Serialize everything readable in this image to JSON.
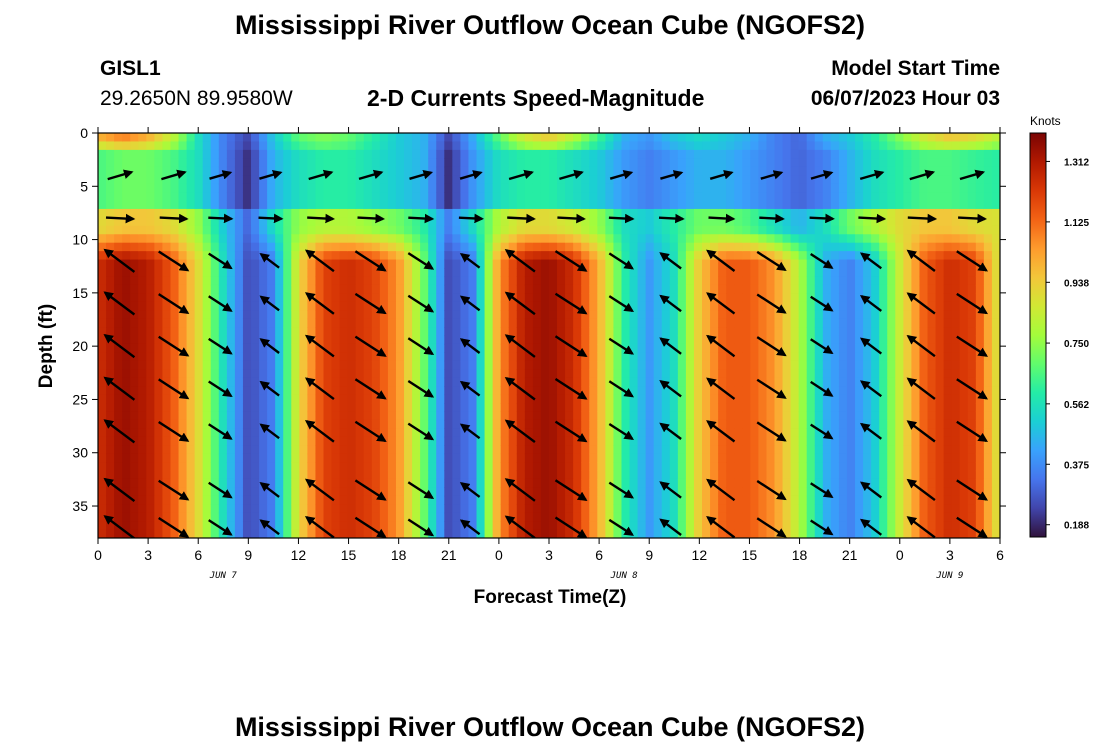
{
  "header": {
    "title": "Mississippi River Outflow Ocean Cube (NGOFS2)",
    "station": "GISL1",
    "location": "29.2650N  89.9580W",
    "subtitle": "2-D Currents Speed-Magnitude",
    "model_start_label": "Model Start Time",
    "model_start_value": "06/07/2023 Hour 03"
  },
  "footer": {
    "title": "Mississippi River Outflow Ocean Cube (NGOFS2)"
  },
  "chart_data": {
    "type": "heatmap",
    "ylabel": "Depth (ft)",
    "xlabel": "Forecast Time(Z)",
    "x_tick_labels": [
      "0",
      "3",
      "6",
      "9",
      "12",
      "15",
      "18",
      "21",
      "0",
      "3",
      "6",
      "9",
      "12",
      "15",
      "18",
      "21",
      "0",
      "3",
      "6"
    ],
    "date_labels": [
      "JUN 7",
      "JUN 8",
      "JUN 9"
    ],
    "ylim": [
      0,
      38
    ],
    "y_ticks": [
      "0",
      "5",
      "10",
      "15",
      "20",
      "25",
      "30",
      "35"
    ],
    "colorbar": {
      "unit": "Knots",
      "ticks": [
        "1.312",
        "1.125",
        "0.938",
        "0.750",
        "0.562",
        "0.375",
        "0.188"
      ],
      "colors": [
        "#30123b",
        "#4145ab",
        "#4675ed",
        "#39a2fc",
        "#1bcfd4",
        "#24eca6",
        "#61fc6c",
        "#a4fc3b",
        "#d1e834",
        "#f3c63a",
        "#fe9b2d",
        "#f36315",
        "#d93806",
        "#b11901",
        "#7a0403"
      ]
    },
    "x_hours": [
      0,
      54
    ],
    "depth_bands": [
      {
        "from": 0,
        "to": 1.5,
        "layer": "surface"
      },
      {
        "from": 1.5,
        "to": 7,
        "layer": "upper"
      },
      {
        "from": 7,
        "to": 9,
        "layer": "transition"
      },
      {
        "from": 9,
        "to": 38,
        "layer": "deep"
      }
    ],
    "speed_profile_knots": {
      "hours": [
        0,
        1.5,
        3,
        4.5,
        6,
        7.5,
        9,
        10.5,
        12,
        13.5,
        15,
        16.5,
        18,
        19.5,
        21,
        22.5,
        24,
        25.5,
        27,
        28.5,
        30,
        31.5,
        33,
        34.5,
        36,
        37.5,
        39,
        40.5,
        42,
        43.5,
        45,
        46.5,
        48,
        49.5,
        51,
        52.5,
        54
      ],
      "surface": [
        1.05,
        1.15,
        1.05,
        0.85,
        0.55,
        0.35,
        0.25,
        0.5,
        0.7,
        0.75,
        0.7,
        0.6,
        0.5,
        0.45,
        0.25,
        0.45,
        0.7,
        0.9,
        1.0,
        0.85,
        0.65,
        0.45,
        0.4,
        0.5,
        0.55,
        0.5,
        0.45,
        0.35,
        0.3,
        0.45,
        0.5,
        0.6,
        0.75,
        0.9,
        1.0,
        0.95,
        0.85
      ],
      "upper": [
        0.65,
        0.7,
        0.7,
        0.65,
        0.55,
        0.35,
        0.2,
        0.45,
        0.55,
        0.6,
        0.6,
        0.55,
        0.5,
        0.45,
        0.2,
        0.4,
        0.55,
        0.6,
        0.6,
        0.55,
        0.5,
        0.4,
        0.35,
        0.4,
        0.45,
        0.45,
        0.4,
        0.35,
        0.3,
        0.35,
        0.45,
        0.55,
        0.6,
        0.65,
        0.65,
        0.62,
        0.6
      ],
      "transition": [
        0.9,
        0.95,
        0.95,
        0.9,
        0.75,
        0.5,
        0.3,
        0.55,
        0.75,
        0.8,
        0.8,
        0.75,
        0.7,
        0.6,
        0.35,
        0.55,
        0.8,
        0.9,
        0.9,
        0.85,
        0.75,
        0.55,
        0.5,
        0.6,
        0.7,
        0.7,
        0.65,
        0.55,
        0.45,
        0.55,
        0.7,
        0.8,
        0.9,
        0.95,
        0.95,
        0.9,
        0.88
      ],
      "deep": [
        1.25,
        1.35,
        1.3,
        1.15,
        0.9,
        0.55,
        0.25,
        0.35,
        0.9,
        1.2,
        1.25,
        1.2,
        1.05,
        0.7,
        0.25,
        0.35,
        1.05,
        1.3,
        1.35,
        1.25,
        1.0,
        0.6,
        0.4,
        0.55,
        0.95,
        1.15,
        1.15,
        1.05,
        0.8,
        0.45,
        0.35,
        0.5,
        0.85,
        1.15,
        1.25,
        1.2,
        0.85
      ]
    },
    "vector_rows_depth_ft": [
      4,
      8,
      12,
      16,
      20,
      24,
      28,
      33.5,
      37
    ],
    "vector_hours": [
      1.3,
      4.5,
      7.3,
      10.3,
      13.3,
      16.3,
      19.3,
      22.3,
      25.3,
      28.3,
      31.3,
      34.3,
      37.3,
      40.3,
      43.3,
      46.3,
      49.3,
      52.3
    ]
  }
}
